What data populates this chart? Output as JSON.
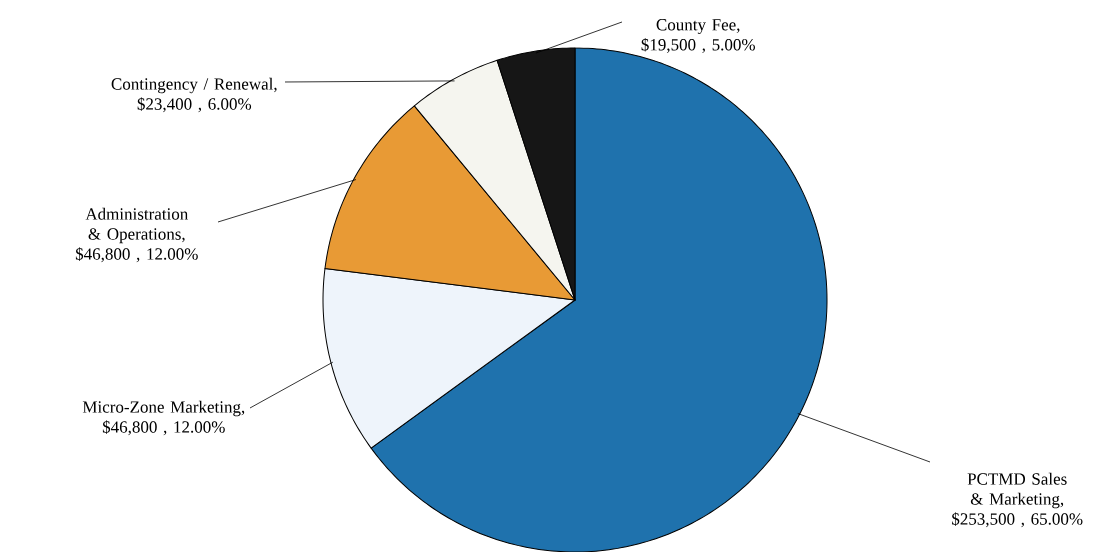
{
  "chart_data": {
    "type": "pie",
    "categories": [
      "PCTMD Sales & Marketing, $253,500 , 65.00%",
      "Micro-Zone Marketing, $46,800 , 12.00%",
      "Administration & Operations, $46,800 , 12.00%",
      "Contingency / Renewal, $23,400 , 6.00%",
      "County Fee, $19,500 , 5.00%"
    ],
    "values": [
      253500,
      46800,
      46800,
      23400,
      19500
    ],
    "colors": [
      "#1f72ad",
      "#eef4fb",
      "#e89a35",
      "#f5f5ef",
      "#161616"
    ]
  }
}
